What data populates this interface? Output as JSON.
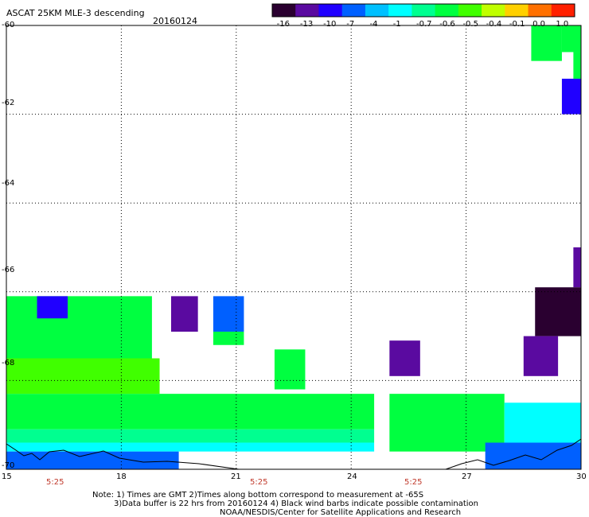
{
  "title": {
    "product": "ASCAT 25KM MLE-3 descending",
    "date": "20160124"
  },
  "colorbar": {
    "labels": [
      "-16",
      "-13",
      "-10",
      "-7",
      "-4",
      "-1",
      "-0.7",
      "-0.6",
      "-0.5",
      "-0.4",
      "-0.1",
      "0.0",
      "1.0"
    ],
    "colors": [
      "#2a0030",
      "#5a0aa0",
      "#2000ff",
      "#0060ff",
      "#00c0ff",
      "#00ffff",
      "#00ff90",
      "#00ff40",
      "#40ff00",
      "#c0ff00",
      "#ffd000",
      "#ff7000",
      "#ff2000"
    ]
  },
  "axes": {
    "y_ticks": [
      "-60",
      "-62",
      "-64",
      "-66",
      "-68",
      "-70"
    ],
    "x_ticks": [
      "15",
      "18",
      "21",
      "24",
      "27",
      "30"
    ],
    "x_range": [
      15,
      30
    ],
    "y_range": [
      -70,
      -60
    ],
    "grid": true
  },
  "pass_times": [
    "5:25",
    "5:25",
    "5:25"
  ],
  "notes": {
    "line1": "Note: 1) Times are GMT 2)Times along bottom correspond to measurement at -65S",
    "line2": "3)Data buffer is 22 hrs from 20160124 4) Black wind barbs indicate possible contamination",
    "line3": "NOAA/NESDIS/Center for Satellite Applications and Research"
  },
  "chart_data": {
    "type": "heatmap",
    "variable": "MLE",
    "x_unit": "degrees longitude",
    "y_unit": "degrees latitude",
    "cells": [
      {
        "lon": [
          28.7,
          29.5
        ],
        "lat": [
          -60.8,
          -60.0
        ],
        "value": -0.6
      },
      {
        "lon": [
          29.5,
          30.0
        ],
        "lat": [
          -60.6,
          -60.0
        ],
        "value": -0.6
      },
      {
        "lon": [
          29.8,
          30.0
        ],
        "lat": [
          -61.2,
          -60.6
        ],
        "value": -0.6
      },
      {
        "lon": [
          29.5,
          30.0
        ],
        "lat": [
          -62.0,
          -61.2
        ],
        "value": -10
      },
      {
        "lon": [
          29.8,
          30.0
        ],
        "lat": [
          -65.9,
          -65.0
        ],
        "value": -13
      },
      {
        "lon": [
          28.8,
          30.0
        ],
        "lat": [
          -67.0,
          -65.9
        ],
        "value": -16
      },
      {
        "lon": [
          28.5,
          29.4
        ],
        "lat": [
          -67.9,
          -67.0
        ],
        "value": -13
      },
      {
        "lon": [
          25.0,
          25.8
        ],
        "lat": [
          -67.9,
          -67.1
        ],
        "value": -13
      },
      {
        "lon": [
          19.3,
          20.0
        ],
        "lat": [
          -66.9,
          -66.1
        ],
        "value": -13
      },
      {
        "lon": [
          15.0,
          18.8
        ],
        "lat": [
          -67.5,
          -66.1
        ],
        "value": -0.6
      },
      {
        "lon": [
          15.8,
          16.6
        ],
        "lat": [
          -66.6,
          -66.1
        ],
        "value": -10
      },
      {
        "lon": [
          15.0,
          19.0
        ],
        "lat": [
          -68.3,
          -67.5
        ],
        "value": -0.5
      },
      {
        "lon": [
          20.4,
          21.2
        ],
        "lat": [
          -66.9,
          -66.1
        ],
        "value": -7
      },
      {
        "lon": [
          20.4,
          21.2
        ],
        "lat": [
          -67.2,
          -66.9
        ],
        "value": -0.6
      },
      {
        "lon": [
          22.0,
          22.8
        ],
        "lat": [
          -68.2,
          -67.3
        ],
        "value": -0.6
      },
      {
        "lon": [
          15.0,
          24.6
        ],
        "lat": [
          -69.1,
          -68.3
        ],
        "value": -0.6
      },
      {
        "lon": [
          15.0,
          24.6
        ],
        "lat": [
          -69.4,
          -69.1
        ],
        "value": -0.7
      },
      {
        "lon": [
          15.0,
          24.6
        ],
        "lat": [
          -69.6,
          -69.4
        ],
        "value": -1
      },
      {
        "lon": [
          15.0,
          19.5
        ],
        "lat": [
          -70.0,
          -69.6
        ],
        "value": -7
      },
      {
        "lon": [
          25.0,
          28.0
        ],
        "lat": [
          -69.6,
          -68.3
        ],
        "value": -0.6
      },
      {
        "lon": [
          28.0,
          30.0
        ],
        "lat": [
          -69.4,
          -68.5
        ],
        "value": -1
      },
      {
        "lon": [
          27.5,
          30.0
        ],
        "lat": [
          -70.0,
          -69.4
        ],
        "value": -7
      }
    ],
    "colorscale_labels": [
      "-16",
      "-13",
      "-10",
      "-7",
      "-4",
      "-1",
      "-0.7",
      "-0.6",
      "-0.5",
      "-0.4",
      "-0.1",
      "0.0",
      "1.0"
    ]
  }
}
